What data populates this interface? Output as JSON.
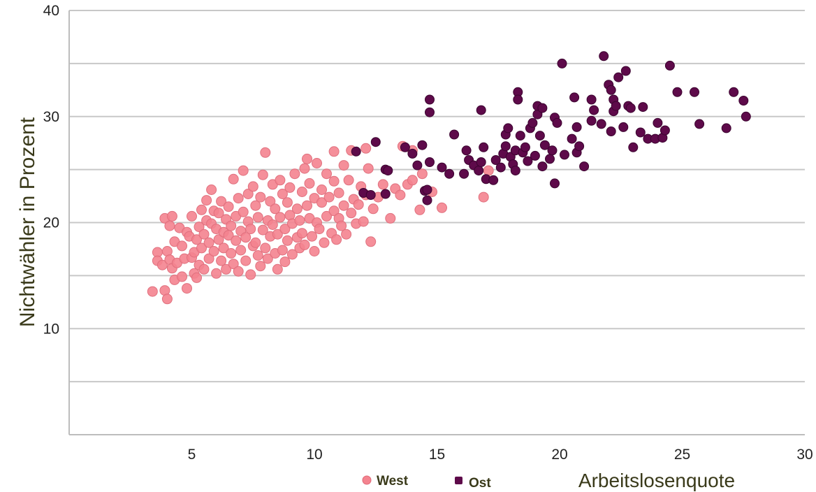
{
  "chart_data": {
    "type": "scatter",
    "title": "",
    "xlabel": "Arbeitslosenquote",
    "ylabel": "Nichtwähler in Prozent",
    "xlim": [
      0,
      30
    ],
    "ylim": [
      0,
      40
    ],
    "xticks": [
      5,
      10,
      15,
      20,
      25,
      30
    ],
    "yticks": [
      10,
      20,
      30,
      40
    ],
    "grid": "horizontal",
    "legend_position": "bottom",
    "colors": {
      "West": "#f4838f",
      "Ost": "#5e0a4a"
    },
    "series": [
      {
        "name": "West",
        "points": [
          [
            3.4,
            13.5
          ],
          [
            3.6,
            17.2
          ],
          [
            3.6,
            16.4
          ],
          [
            3.8,
            16.0
          ],
          [
            3.9,
            20.4
          ],
          [
            3.9,
            13.6
          ],
          [
            4.0,
            12.8
          ],
          [
            4.0,
            17.3
          ],
          [
            4.1,
            16.5
          ],
          [
            4.1,
            19.7
          ],
          [
            4.2,
            20.6
          ],
          [
            4.2,
            15.7
          ],
          [
            4.3,
            14.6
          ],
          [
            4.3,
            18.2
          ],
          [
            4.4,
            16.2
          ],
          [
            4.5,
            19.5
          ],
          [
            4.6,
            17.8
          ],
          [
            4.6,
            14.9
          ],
          [
            4.7,
            16.6
          ],
          [
            4.8,
            19.1
          ],
          [
            4.8,
            13.8
          ],
          [
            4.9,
            18.7
          ],
          [
            5.0,
            16.7
          ],
          [
            5.0,
            20.6
          ],
          [
            5.1,
            17.2
          ],
          [
            5.1,
            15.2
          ],
          [
            5.2,
            18.4
          ],
          [
            5.2,
            14.8
          ],
          [
            5.3,
            19.6
          ],
          [
            5.3,
            16.0
          ],
          [
            5.4,
            21.2
          ],
          [
            5.4,
            17.6
          ],
          [
            5.5,
            18.9
          ],
          [
            5.5,
            15.6
          ],
          [
            5.6,
            20.2
          ],
          [
            5.6,
            22.1
          ],
          [
            5.7,
            16.6
          ],
          [
            5.7,
            18.1
          ],
          [
            5.8,
            19.9
          ],
          [
            5.8,
            23.1
          ],
          [
            5.9,
            21.1
          ],
          [
            5.9,
            17.3
          ],
          [
            6.0,
            15.2
          ],
          [
            6.0,
            19.4
          ],
          [
            6.1,
            18.4
          ],
          [
            6.1,
            20.9
          ],
          [
            6.2,
            16.4
          ],
          [
            6.2,
            22.0
          ],
          [
            6.3,
            19.1
          ],
          [
            6.3,
            17.6
          ],
          [
            6.4,
            20.3
          ],
          [
            6.4,
            15.6
          ],
          [
            6.5,
            18.8
          ],
          [
            6.5,
            21.5
          ],
          [
            6.6,
            17.1
          ],
          [
            6.6,
            19.7
          ],
          [
            6.7,
            24.1
          ],
          [
            6.7,
            16.1
          ],
          [
            6.8,
            20.6
          ],
          [
            6.8,
            18.3
          ],
          [
            6.9,
            22.3
          ],
          [
            6.9,
            15.4
          ],
          [
            7.0,
            19.2
          ],
          [
            7.0,
            17.4
          ],
          [
            7.1,
            21.0
          ],
          [
            7.1,
            24.9
          ],
          [
            7.2,
            18.6
          ],
          [
            7.2,
            16.4
          ],
          [
            7.3,
            20.1
          ],
          [
            7.3,
            22.7
          ],
          [
            7.4,
            15.1
          ],
          [
            7.4,
            19.4
          ],
          [
            7.5,
            17.8
          ],
          [
            7.5,
            23.4
          ],
          [
            7.6,
            21.6
          ],
          [
            7.6,
            18.1
          ],
          [
            7.7,
            16.9
          ],
          [
            7.7,
            20.5
          ],
          [
            7.8,
            22.4
          ],
          [
            7.8,
            15.9
          ],
          [
            7.9,
            19.3
          ],
          [
            7.9,
            24.5
          ],
          [
            8.0,
            17.6
          ],
          [
            8.0,
            26.6
          ],
          [
            8.1,
            20.2
          ],
          [
            8.1,
            16.6
          ],
          [
            8.2,
            18.7
          ],
          [
            8.2,
            22.0
          ],
          [
            8.3,
            19.8
          ],
          [
            8.3,
            23.6
          ],
          [
            8.4,
            17.1
          ],
          [
            8.4,
            21.3
          ],
          [
            8.5,
            15.6
          ],
          [
            8.5,
            18.9
          ],
          [
            8.6,
            20.5
          ],
          [
            8.6,
            24.0
          ],
          [
            8.7,
            17.4
          ],
          [
            8.7,
            22.7
          ],
          [
            8.8,
            19.4
          ],
          [
            8.8,
            16.3
          ],
          [
            8.9,
            21.9
          ],
          [
            8.9,
            18.3
          ],
          [
            9.0,
            20.7
          ],
          [
            9.0,
            23.3
          ],
          [
            9.1,
            17.0
          ],
          [
            9.1,
            19.9
          ],
          [
            9.2,
            24.6
          ],
          [
            9.3,
            18.6
          ],
          [
            9.3,
            21.3
          ],
          [
            9.4,
            20.2
          ],
          [
            9.4,
            17.6
          ],
          [
            9.5,
            22.9
          ],
          [
            9.5,
            19.0
          ],
          [
            9.6,
            25.1
          ],
          [
            9.6,
            17.9
          ],
          [
            9.7,
            21.6
          ],
          [
            9.8,
            20.4
          ],
          [
            9.8,
            23.7
          ],
          [
            9.9,
            18.7
          ],
          [
            10.0,
            22.3
          ],
          [
            10.0,
            17.3
          ],
          [
            10.1,
            25.6
          ],
          [
            10.1,
            20.0
          ],
          [
            10.2,
            19.4
          ],
          [
            10.3,
            23.1
          ],
          [
            10.3,
            21.9
          ],
          [
            10.4,
            18.1
          ],
          [
            10.5,
            24.6
          ],
          [
            10.5,
            20.6
          ],
          [
            10.6,
            22.4
          ],
          [
            10.7,
            19.0
          ],
          [
            10.8,
            21.1
          ],
          [
            10.8,
            23.9
          ],
          [
            10.9,
            18.4
          ],
          [
            11.0,
            20.4
          ],
          [
            11.0,
            22.8
          ],
          [
            11.1,
            19.7
          ],
          [
            11.2,
            25.4
          ],
          [
            11.2,
            21.6
          ],
          [
            11.3,
            18.9
          ],
          [
            11.4,
            24.0
          ],
          [
            11.5,
            20.9
          ],
          [
            11.5,
            26.8
          ],
          [
            11.6,
            22.2
          ],
          [
            11.7,
            19.9
          ],
          [
            11.8,
            21.7
          ],
          [
            11.9,
            23.4
          ],
          [
            12.0,
            20.1
          ],
          [
            12.1,
            22.6
          ],
          [
            12.2,
            25.1
          ],
          [
            12.3,
            18.2
          ],
          [
            12.4,
            21.3
          ],
          [
            12.6,
            22.4
          ],
          [
            12.8,
            23.6
          ],
          [
            13.1,
            20.4
          ],
          [
            13.3,
            23.2
          ],
          [
            13.5,
            22.6
          ],
          [
            13.8,
            23.6
          ],
          [
            14.0,
            24.0
          ],
          [
            14.3,
            21.2
          ],
          [
            14.4,
            24.6
          ],
          [
            14.8,
            22.9
          ],
          [
            15.2,
            21.4
          ],
          [
            16.9,
            22.4
          ],
          [
            17.1,
            24.9
          ],
          [
            14.0,
            26.8
          ],
          [
            13.6,
            27.2
          ],
          [
            12.1,
            27.0
          ],
          [
            10.8,
            26.7
          ],
          [
            9.7,
            26.0
          ]
        ]
      },
      {
        "name": "Ost",
        "points": [
          [
            11.7,
            26.7
          ],
          [
            12.0,
            22.8
          ],
          [
            12.3,
            22.6
          ],
          [
            12.5,
            27.6
          ],
          [
            12.9,
            22.7
          ],
          [
            12.9,
            25.0
          ],
          [
            13.0,
            24.9
          ],
          [
            13.7,
            27.1
          ],
          [
            14.0,
            26.5
          ],
          [
            14.2,
            25.4
          ],
          [
            14.4,
            27.3
          ],
          [
            14.5,
            23.0
          ],
          [
            14.6,
            23.1
          ],
          [
            14.6,
            22.1
          ],
          [
            14.7,
            31.6
          ],
          [
            14.7,
            30.4
          ],
          [
            14.7,
            25.7
          ],
          [
            15.2,
            25.2
          ],
          [
            15.5,
            24.6
          ],
          [
            15.7,
            28.3
          ],
          [
            16.1,
            24.6
          ],
          [
            16.2,
            26.8
          ],
          [
            16.3,
            25.9
          ],
          [
            16.5,
            25.4
          ],
          [
            16.7,
            24.9
          ],
          [
            16.8,
            30.6
          ],
          [
            16.8,
            25.7
          ],
          [
            16.9,
            27.1
          ],
          [
            17.0,
            24.1
          ],
          [
            17.3,
            24.0
          ],
          [
            17.4,
            25.9
          ],
          [
            17.6,
            25.2
          ],
          [
            17.7,
            26.5
          ],
          [
            17.8,
            27.2
          ],
          [
            17.8,
            28.3
          ],
          [
            17.9,
            28.9
          ],
          [
            18.0,
            26.2
          ],
          [
            18.1,
            25.5
          ],
          [
            18.2,
            26.8
          ],
          [
            18.2,
            24.9
          ],
          [
            18.3,
            32.3
          ],
          [
            18.3,
            31.6
          ],
          [
            18.4,
            28.2
          ],
          [
            18.5,
            26.6
          ],
          [
            18.6,
            27.1
          ],
          [
            18.7,
            25.8
          ],
          [
            18.8,
            28.9
          ],
          [
            18.9,
            29.4
          ],
          [
            19.0,
            26.3
          ],
          [
            19.1,
            30.2
          ],
          [
            19.1,
            31.0
          ],
          [
            19.2,
            28.2
          ],
          [
            19.3,
            30.8
          ],
          [
            19.3,
            25.3
          ],
          [
            19.4,
            27.3
          ],
          [
            19.6,
            26.0
          ],
          [
            19.7,
            26.8
          ],
          [
            19.8,
            29.9
          ],
          [
            19.8,
            23.7
          ],
          [
            19.9,
            29.4
          ],
          [
            20.1,
            35.0
          ],
          [
            20.2,
            26.4
          ],
          [
            20.5,
            27.9
          ],
          [
            20.6,
            31.8
          ],
          [
            20.7,
            26.6
          ],
          [
            20.7,
            29.0
          ],
          [
            20.8,
            27.2
          ],
          [
            21.0,
            25.3
          ],
          [
            21.3,
            29.6
          ],
          [
            21.3,
            31.6
          ],
          [
            21.4,
            30.6
          ],
          [
            21.7,
            29.3
          ],
          [
            21.8,
            35.7
          ],
          [
            22.0,
            33.0
          ],
          [
            22.1,
            32.5
          ],
          [
            22.1,
            28.6
          ],
          [
            22.2,
            31.6
          ],
          [
            22.2,
            30.5
          ],
          [
            22.3,
            31.0
          ],
          [
            22.4,
            33.7
          ],
          [
            22.6,
            29.0
          ],
          [
            22.7,
            34.3
          ],
          [
            22.8,
            31.0
          ],
          [
            22.9,
            30.8
          ],
          [
            23.0,
            27.1
          ],
          [
            23.3,
            28.5
          ],
          [
            23.4,
            30.9
          ],
          [
            23.6,
            27.9
          ],
          [
            23.9,
            27.9
          ],
          [
            24.0,
            29.4
          ],
          [
            24.2,
            28.0
          ],
          [
            24.3,
            28.7
          ],
          [
            24.5,
            34.8
          ],
          [
            24.8,
            32.3
          ],
          [
            25.5,
            32.3
          ],
          [
            25.7,
            29.3
          ],
          [
            26.8,
            28.9
          ],
          [
            27.1,
            32.3
          ],
          [
            27.5,
            31.5
          ],
          [
            27.6,
            30.0
          ]
        ]
      }
    ]
  }
}
